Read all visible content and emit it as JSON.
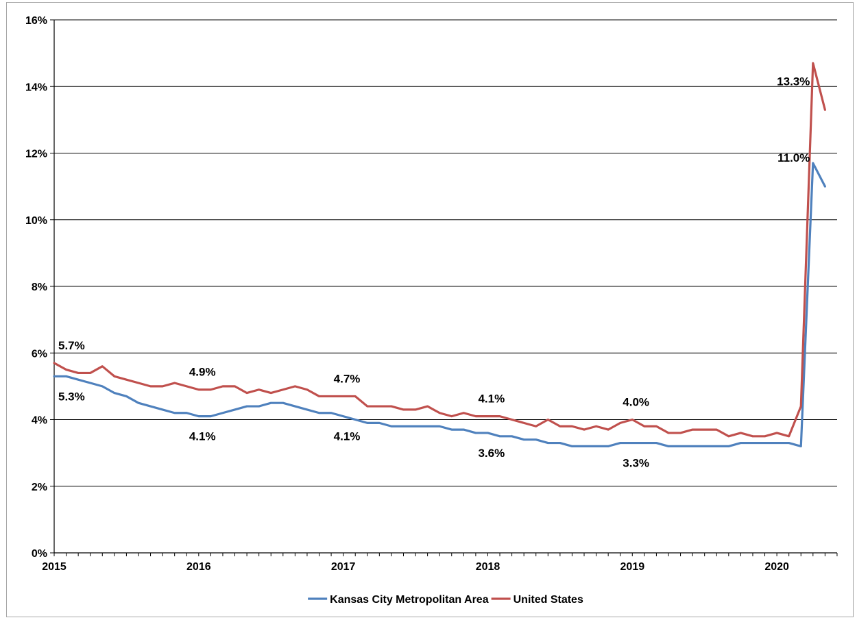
{
  "chart_data": {
    "type": "line",
    "title": "",
    "xlabel": "",
    "ylabel": "",
    "ylim": [
      0,
      16
    ],
    "y_ticks": [
      "0%",
      "2%",
      "4%",
      "6%",
      "8%",
      "10%",
      "12%",
      "14%",
      "16%"
    ],
    "y_tick_values": [
      0,
      2,
      4,
      6,
      8,
      10,
      12,
      14,
      16
    ],
    "x_ticks": [
      "2015",
      "2016",
      "2017",
      "2018",
      "2019",
      "2020"
    ],
    "x_tick_values": [
      2015,
      2016,
      2017,
      2018,
      2019,
      2020
    ],
    "x_step": 0.08333,
    "xlim": [
      2015,
      2020.4167
    ],
    "grid": "horizontal",
    "legend": "bottom",
    "series": [
      {
        "name": "Kansas City Metropolitan Area",
        "color": "#4f81bd",
        "x_start": 2015,
        "values": [
          5.3,
          5.3,
          5.2,
          5.1,
          5.0,
          4.8,
          4.7,
          4.5,
          4.4,
          4.3,
          4.2,
          4.2,
          4.1,
          4.1,
          4.2,
          4.3,
          4.4,
          4.4,
          4.5,
          4.5,
          4.4,
          4.3,
          4.2,
          4.2,
          4.1,
          4.0,
          3.9,
          3.9,
          3.8,
          3.8,
          3.8,
          3.8,
          3.8,
          3.7,
          3.7,
          3.6,
          3.6,
          3.5,
          3.5,
          3.4,
          3.4,
          3.3,
          3.3,
          3.2,
          3.2,
          3.2,
          3.2,
          3.3,
          3.3,
          3.3,
          3.3,
          3.2,
          3.2,
          3.2,
          3.2,
          3.2,
          3.2,
          3.3,
          3.3,
          3.3,
          3.3,
          3.3,
          3.2,
          11.7,
          11.0
        ]
      },
      {
        "name": "United States",
        "color": "#c0504d",
        "x_start": 2015,
        "values": [
          5.7,
          5.5,
          5.4,
          5.4,
          5.6,
          5.3,
          5.2,
          5.1,
          5.0,
          5.0,
          5.1,
          5.0,
          4.9,
          4.9,
          5.0,
          5.0,
          4.8,
          4.9,
          4.8,
          4.9,
          5.0,
          4.9,
          4.7,
          4.7,
          4.7,
          4.7,
          4.4,
          4.4,
          4.4,
          4.3,
          4.3,
          4.4,
          4.2,
          4.1,
          4.2,
          4.1,
          4.1,
          4.1,
          4.0,
          3.9,
          3.8,
          4.0,
          3.8,
          3.8,
          3.7,
          3.8,
          3.7,
          3.9,
          4.0,
          3.8,
          3.8,
          3.6,
          3.6,
          3.7,
          3.7,
          3.7,
          3.5,
          3.6,
          3.5,
          3.5,
          3.6,
          3.5,
          4.4,
          14.7,
          13.3
        ]
      }
    ],
    "annotations": [
      {
        "series": 1,
        "index": 0,
        "text": "5.7%",
        "position": "above"
      },
      {
        "series": 0,
        "index": 0,
        "text": "5.3%",
        "position": "below"
      },
      {
        "series": 1,
        "index": 12,
        "text": "4.9%",
        "position": "above"
      },
      {
        "series": 0,
        "index": 12,
        "text": "4.1%",
        "position": "below"
      },
      {
        "series": 1,
        "index": 24,
        "text": "4.7%",
        "position": "above"
      },
      {
        "series": 0,
        "index": 24,
        "text": "4.1%",
        "position": "below"
      },
      {
        "series": 1,
        "index": 36,
        "text": "4.1%",
        "position": "above"
      },
      {
        "series": 0,
        "index": 36,
        "text": "3.6%",
        "position": "below"
      },
      {
        "series": 1,
        "index": 48,
        "text": "4.0%",
        "position": "above"
      },
      {
        "series": 0,
        "index": 48,
        "text": "3.3%",
        "position": "below"
      },
      {
        "series": 1,
        "index": 64,
        "text": "13.3%",
        "position": "left"
      },
      {
        "series": 0,
        "index": 64,
        "text": "11.0%",
        "position": "left"
      }
    ]
  }
}
